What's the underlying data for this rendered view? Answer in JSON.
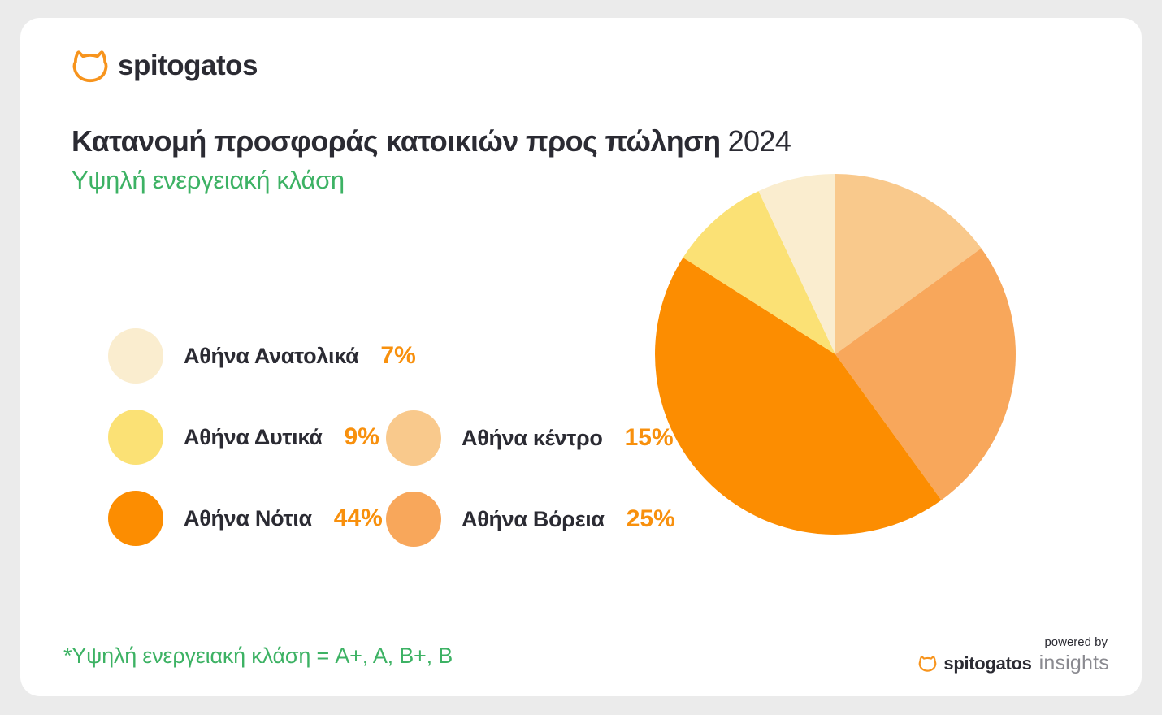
{
  "theme": {
    "page_bg": "#EBEBEB",
    "card_bg": "#FFFFFF",
    "ink": "#2B2B33",
    "green": "#3DB264",
    "orange": "#F8900D",
    "logo_orange": "#F7941D",
    "divider": "#C8C8C8",
    "gray_text": "#8A8A90"
  },
  "brand": {
    "logo_text": "spitogatos"
  },
  "header": {
    "title": "Κατανομή προσφοράς κατοικιών προς πώληση",
    "title_year": "2024",
    "subtitle": "Υψηλή ενεργειακή κλάση"
  },
  "chart_data": {
    "type": "pie",
    "title": "Κατανομή προσφοράς κατοικιών προς πώληση 2024",
    "subtitle": "Υψηλή ενεργειακή κλάση",
    "unit": "%",
    "start_angle": "top",
    "direction": "clockwise",
    "legend_position": "left",
    "segments": [
      {
        "label": "Αθήνα κέντρο",
        "value": 15,
        "color": "#F9C98C"
      },
      {
        "label": "Αθήνα Βόρεια",
        "value": 25,
        "color": "#F8A75B"
      },
      {
        "label": "Αθήνα Νότια",
        "value": 44,
        "color": "#FC8D01"
      },
      {
        "label": "Αθήνα Δυτικά",
        "value": 9,
        "color": "#FBE175"
      },
      {
        "label": "Αθήνα Ανατολικά",
        "value": 7,
        "color": "#FAEDCF"
      }
    ]
  },
  "legend": {
    "items": [
      {
        "label": "Αθήνα Ανατολικά",
        "value_text": "7%",
        "color": "#FAEDCF"
      },
      {
        "label": "Αθήνα Δυτικά",
        "value_text": "9%",
        "color": "#FBE175"
      },
      {
        "label": "Αθήνα Νότια",
        "value_text": "44%",
        "color": "#FC8D01"
      },
      {
        "label": "Αθήνα κέντρο",
        "value_text": "15%",
        "color": "#F9C98C"
      },
      {
        "label": "Αθήνα Βόρεια",
        "value_text": "25%",
        "color": "#F8A75B"
      }
    ]
  },
  "footnote": {
    "text": "*Υψηλή ενεργειακή κλάση = A+, A, B+, B"
  },
  "powered_by": {
    "label": "powered by",
    "brand": "spitogatos",
    "suffix": "insights"
  }
}
